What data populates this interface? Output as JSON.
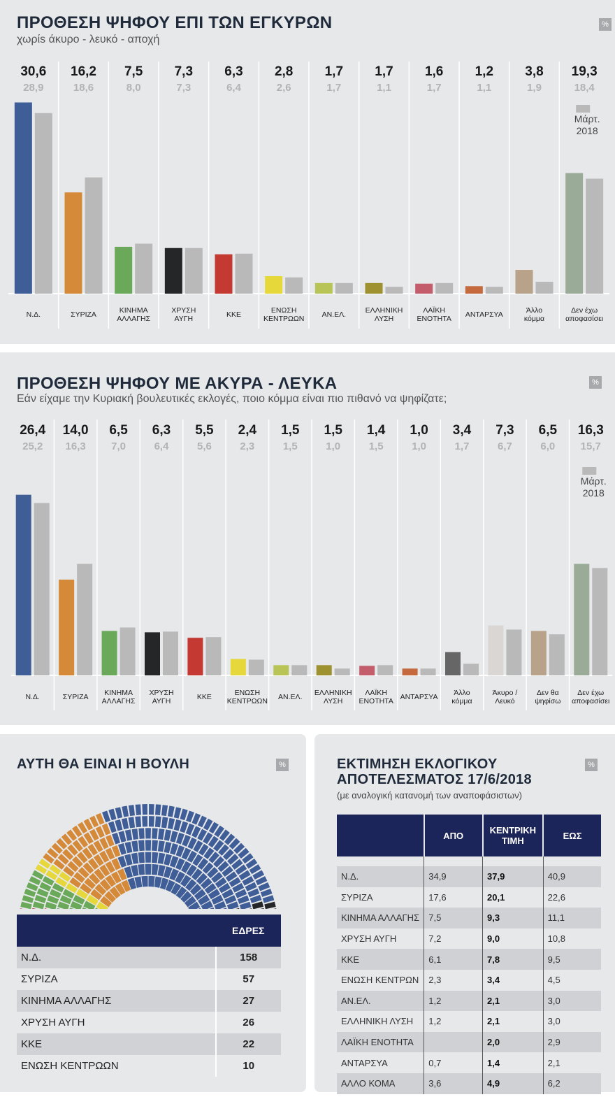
{
  "colors": {
    "nd": "#3f5e97",
    "syriza": "#d58a3a",
    "kinal": "#6aa85a",
    "xa": "#252628",
    "kke": "#c43a33",
    "ek": "#e6d73a",
    "anel": "#b8c456",
    "el": "#9e9130",
    "le": "#c45d6b",
    "antarsya": "#c46a3e",
    "other": "#b8a28a",
    "undecided": "#9aac98",
    "blank": "#d9d6d3",
    "notvote": "#b8a28a",
    "prev": "#b9b9b9",
    "other2": "#666666",
    "navy": "#1c2559"
  },
  "percent_badge": "%",
  "chart_data": [
    {
      "type": "bar",
      "title": "ΠΡΟΘΕΣΗ ΨΗΦΟΥ ΕΠΙ ΤΩΝ ΕΓΚΥΡΩΝ",
      "subtitle": "χωρίs άκυρο - λευκό - αποχή",
      "legend_label": [
        "Μάρτ.",
        "2018"
      ],
      "legend_position": "top-right",
      "ylim": [
        0,
        32
      ],
      "categories": [
        {
          "label": [
            "Ν.Δ."
          ],
          "current": "30,6",
          "previous": "28,9",
          "v": 30.6,
          "p": 28.9,
          "color": "nd"
        },
        {
          "label": [
            "ΣΥΡΙΖΑ"
          ],
          "current": "16,2",
          "previous": "18,6",
          "v": 16.2,
          "p": 18.6,
          "color": "syriza"
        },
        {
          "label": [
            "ΚΙΝΗΜΑ",
            "ΑΛΛΑΓΗΣ"
          ],
          "current": "7,5",
          "previous": "8,0",
          "v": 7.5,
          "p": 8.0,
          "color": "kinal"
        },
        {
          "label": [
            "ΧΡΥΣΗ",
            "ΑΥΓΗ"
          ],
          "current": "7,3",
          "previous": "7,3",
          "v": 7.3,
          "p": 7.3,
          "color": "xa"
        },
        {
          "label": [
            "ΚΚΕ"
          ],
          "current": "6,3",
          "previous": "6,4",
          "v": 6.3,
          "p": 6.4,
          "color": "kke"
        },
        {
          "label": [
            "ΕΝΩΣΗ",
            "ΚΕΝΤΡΩΩΝ"
          ],
          "current": "2,8",
          "previous": "2,6",
          "v": 2.8,
          "p": 2.6,
          "color": "ek"
        },
        {
          "label": [
            "ΑΝ.ΕΛ."
          ],
          "current": "1,7",
          "previous": "1,7",
          "v": 1.7,
          "p": 1.7,
          "color": "anel"
        },
        {
          "label": [
            "ΕΛΛΗΝΙΚΗ",
            "ΛΥΣΗ"
          ],
          "current": "1,7",
          "previous": "1,1",
          "v": 1.7,
          "p": 1.1,
          "color": "el"
        },
        {
          "label": [
            "ΛΑΪΚΗ",
            "ΕΝΟΤΗΤΑ"
          ],
          "current": "1,6",
          "previous": "1,7",
          "v": 1.6,
          "p": 1.7,
          "color": "le"
        },
        {
          "label": [
            "ΑΝΤΑΡΣΥΑ"
          ],
          "current": "1,2",
          "previous": "1,1",
          "v": 1.2,
          "p": 1.1,
          "color": "antarsya"
        },
        {
          "label": [
            "Άλλο",
            "κόμμα"
          ],
          "current": "3,8",
          "previous": "1,9",
          "v": 3.8,
          "p": 1.9,
          "color": "other"
        },
        {
          "label": [
            "Δεν έχω",
            "αποφασίσει"
          ],
          "current": "19,3",
          "previous": "18,4",
          "v": 19.3,
          "p": 18.4,
          "color": "undecided"
        }
      ]
    },
    {
      "type": "bar",
      "title": "ΠΡΟΘΕΣΗ ΨΗΦΟΥ ΜΕ ΑΚΥΡΑ - ΛΕΥΚΑ",
      "subtitle": "Εάν είχαμε την Κυριακή βουλευτικές εκλογές, ποιο κόμμα είναι πιο πιθανό να ψηφίζατε;",
      "legend_label": [
        "Μάρτ.",
        "2018"
      ],
      "legend_position": "top-right",
      "ylim": [
        0,
        28
      ],
      "categories": [
        {
          "label": [
            "Ν.Δ."
          ],
          "current": "26,4",
          "previous": "25,2",
          "v": 26.4,
          "p": 25.2,
          "color": "nd"
        },
        {
          "label": [
            "ΣΥΡΙΖΑ"
          ],
          "current": "14,0",
          "previous": "16,3",
          "v": 14.0,
          "p": 16.3,
          "color": "syriza"
        },
        {
          "label": [
            "ΚΙΝΗΜΑ",
            "ΑΛΛΑΓΗΣ"
          ],
          "current": "6,5",
          "previous": "7,0",
          "v": 6.5,
          "p": 7.0,
          "color": "kinal"
        },
        {
          "label": [
            "ΧΡΥΣΗ",
            "ΑΥΓΗ"
          ],
          "current": "6,3",
          "previous": "6,4",
          "v": 6.3,
          "p": 6.4,
          "color": "xa"
        },
        {
          "label": [
            "ΚΚΕ"
          ],
          "current": "5,5",
          "previous": "5,6",
          "v": 5.5,
          "p": 5.6,
          "color": "kke"
        },
        {
          "label": [
            "ΕΝΩΣΗ",
            "ΚΕΝΤΡΩΩΝ"
          ],
          "current": "2,4",
          "previous": "2,3",
          "v": 2.4,
          "p": 2.3,
          "color": "ek"
        },
        {
          "label": [
            "ΑΝ.ΕΛ."
          ],
          "current": "1,5",
          "previous": "1,5",
          "v": 1.5,
          "p": 1.5,
          "color": "anel"
        },
        {
          "label": [
            "ΕΛΛΗΝΙΚΗ",
            "ΛΥΣΗ"
          ],
          "current": "1,5",
          "previous": "1,0",
          "v": 1.5,
          "p": 1.0,
          "color": "el"
        },
        {
          "label": [
            "ΛΑΪΚΗ",
            "ΕΝΟΤΗΤΑ"
          ],
          "current": "1,4",
          "previous": "1,5",
          "v": 1.4,
          "p": 1.5,
          "color": "le"
        },
        {
          "label": [
            "ΑΝΤΑΡΣΥΑ"
          ],
          "current": "1,0",
          "previous": "1,0",
          "v": 1.0,
          "p": 1.0,
          "color": "antarsya"
        },
        {
          "label": [
            "Άλλο",
            "κόμμα"
          ],
          "current": "3,4",
          "previous": "1,7",
          "v": 3.4,
          "p": 1.7,
          "color": "other2"
        },
        {
          "label": [
            "Άκυρο /",
            "Λευκό"
          ],
          "current": "7,3",
          "previous": "6,7",
          "v": 7.3,
          "p": 6.7,
          "color": "blank"
        },
        {
          "label": [
            "Δεν θα",
            "ψηφίσω"
          ],
          "current": "6,5",
          "previous": "6,0",
          "v": 6.5,
          "p": 6.0,
          "color": "notvote"
        },
        {
          "label": [
            "Δεν έχω",
            "αποφασίσει"
          ],
          "current": "16,3",
          "previous": "15,7",
          "v": 16.3,
          "p": 15.7,
          "color": "undecided"
        }
      ]
    },
    {
      "type": "parliament",
      "title": "ΑΥΤΗ ΘΑ ΕΙΝΑΙ Η ΒΟΥΛΗ",
      "header": "ΕΔΡΕΣ",
      "rows": [
        {
          "name": "Ν.Δ.",
          "seats": 158,
          "color": "nd"
        },
        {
          "name": "ΣΥΡΙΖΑ",
          "seats": 57,
          "color": "syriza"
        },
        {
          "name": "ΚΙΝΗΜΑ ΑΛΛΑΓΗΣ",
          "seats": 27,
          "color": "kinal"
        },
        {
          "name": "ΧΡΥΣΗ ΑΥΓΗ",
          "seats": 26,
          "color": "xa"
        },
        {
          "name": "ΚΚΕ",
          "seats": 22,
          "color": "kke"
        },
        {
          "name": "ΕΝΩΣΗ ΚΕΝΤΡΩΩΝ",
          "seats": 10,
          "color": "ek"
        }
      ]
    },
    {
      "type": "table",
      "title": [
        "ΕΚΤΙΜΗΣΗ ΕΚΛΟΓΙΚΟΥ",
        "ΑΠΟΤΕΛΕΣΜΑΤΟΣ 17/6/2018"
      ],
      "subtitle": "(με αναλογική κατανομή των αναποφάσιστων)",
      "columns": [
        "",
        "ΑΠΟ",
        "ΚΕΝΤΡΙΚΗ ΤΙΜΗ",
        "ΕΩΣ"
      ],
      "rows": [
        [
          "Ν.Δ.",
          "34,9",
          "37,9",
          "40,9"
        ],
        [
          "ΣΥΡΙΖΑ",
          "17,6",
          "20,1",
          "22,6"
        ],
        [
          "ΚΙΝΗΜΑ ΑΛΛΑΓΗΣ",
          "7,5",
          "9,3",
          "11,1"
        ],
        [
          "ΧΡΥΣΗ ΑΥΓΗ",
          "7,2",
          "9,0",
          "10,8"
        ],
        [
          "ΚΚΕ",
          "6,1",
          "7,8",
          "9,5"
        ],
        [
          "ΕΝΩΣΗ ΚΕΝΤΡΩΝ",
          "2,3",
          "3,4",
          "4,5"
        ],
        [
          "ΑΝ.ΕΛ.",
          "1,2",
          "2,1",
          "3,0"
        ],
        [
          "ΕΛΛΗΝΙΚΗ ΛΥΣΗ",
          "1,2",
          "2,1",
          "3,0"
        ],
        [
          "ΛΑΪΚΗ ΕΝΟΤΗΤΑ",
          "",
          "2,0",
          "2,9"
        ],
        [
          "ΑΝΤΑΡΣΥΑ",
          "0,7",
          "1,4",
          "2,1"
        ],
        [
          "ΑΛΛΟ ΚΟΜΑ",
          "3,6",
          "4,9",
          "6,2"
        ]
      ]
    }
  ]
}
